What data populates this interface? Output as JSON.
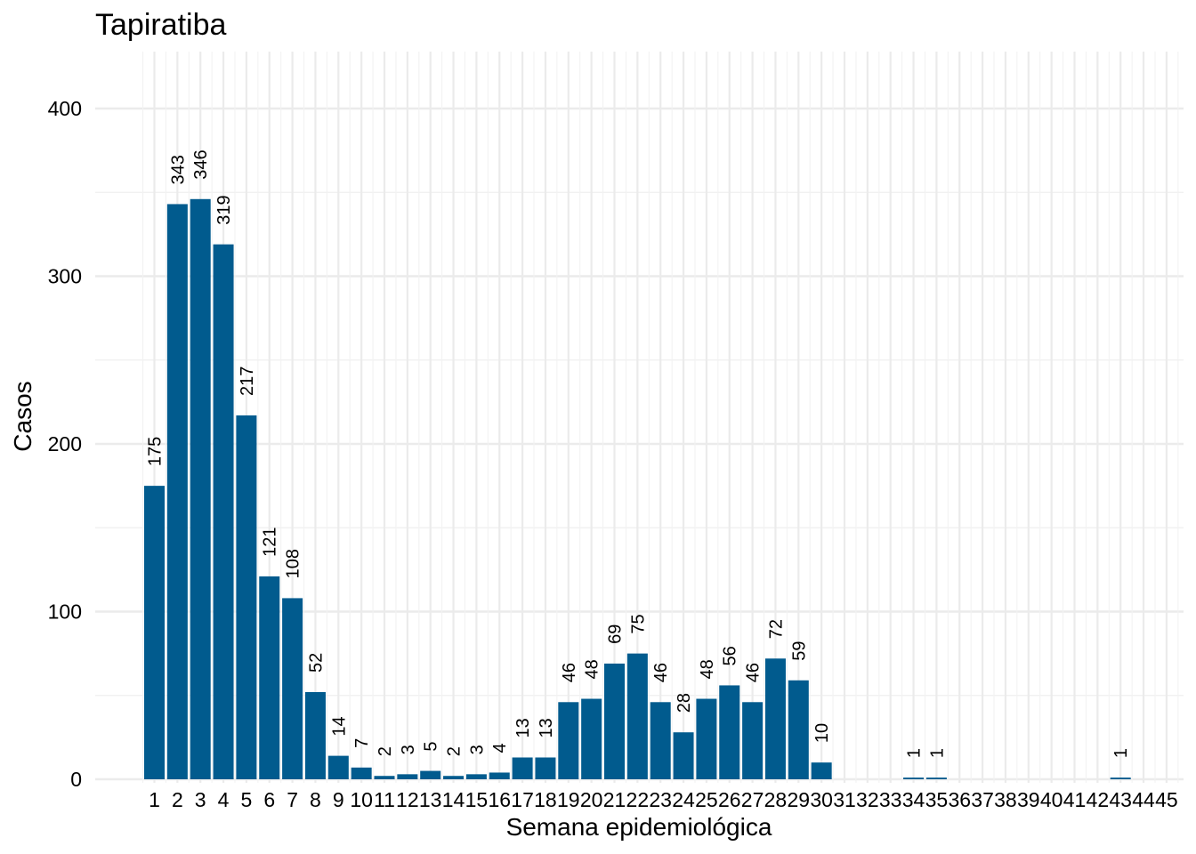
{
  "chart_data": {
    "type": "bar",
    "title": "Tapiratiba",
    "xlabel": "Semana epidemiológica",
    "ylabel": "Casos",
    "categories": [
      "1",
      "2",
      "3",
      "4",
      "5",
      "6",
      "7",
      "8",
      "9",
      "10",
      "11",
      "12",
      "13",
      "14",
      "15",
      "16",
      "17",
      "18",
      "19",
      "20",
      "21",
      "22",
      "23",
      "24",
      "25",
      "26",
      "27",
      "28",
      "29",
      "30",
      "31",
      "32",
      "33",
      "34",
      "35",
      "36",
      "37",
      "38",
      "39",
      "40",
      "41",
      "42",
      "43",
      "44",
      "45"
    ],
    "values": [
      175,
      343,
      346,
      319,
      217,
      121,
      108,
      52,
      14,
      7,
      2,
      3,
      5,
      2,
      3,
      4,
      13,
      13,
      46,
      48,
      69,
      75,
      46,
      28,
      48,
      56,
      46,
      72,
      59,
      10,
      0,
      0,
      0,
      1,
      1,
      0,
      0,
      0,
      0,
      0,
      0,
      0,
      1,
      0,
      0
    ],
    "ylim": [
      0,
      430
    ],
    "yticks": [
      0,
      100,
      200,
      300,
      400
    ],
    "grid": true,
    "bar_color": "#015B8E",
    "label_rotation": "vertical"
  }
}
